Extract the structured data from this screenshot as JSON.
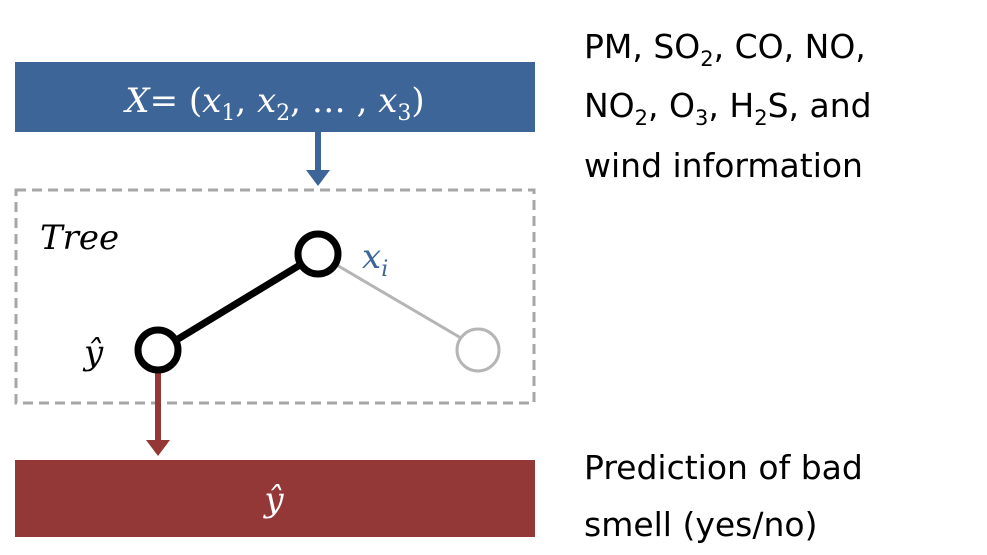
{
  "top_box": {
    "lhs": "X",
    "equals": "= (",
    "x1_base": "x",
    "x1_sub": "1",
    "sep1": ", ",
    "x2_base": "x",
    "x2_sub": "2",
    "ellipsis": ", … , ",
    "x3_base": "x",
    "x3_sub": "3",
    "close": ")",
    "color": "#3d6598"
  },
  "tree_box": {
    "label": "Tree",
    "node_label_base": "x",
    "node_label_sub": "i",
    "leaf_label": "ŷ",
    "border_color": "#a6a6a6",
    "node_label_color": "#3d6598"
  },
  "bottom_box": {
    "label": "ŷ",
    "color": "#943737"
  },
  "input_description": {
    "l1_a": "PM, SO",
    "l1_a_sub": "2",
    "l1_b": ", CO, NO,",
    "l2_a": "NO",
    "l2_a_sub": "2",
    "l2_b": ", O",
    "l2_b_sub": "3",
    "l2_c": ", H",
    "l2_c_sub": "2",
    "l2_d": "S, and",
    "l3": "wind information"
  },
  "output_description": {
    "l1": "Prediction of bad",
    "l2": "smell (yes/no)"
  }
}
